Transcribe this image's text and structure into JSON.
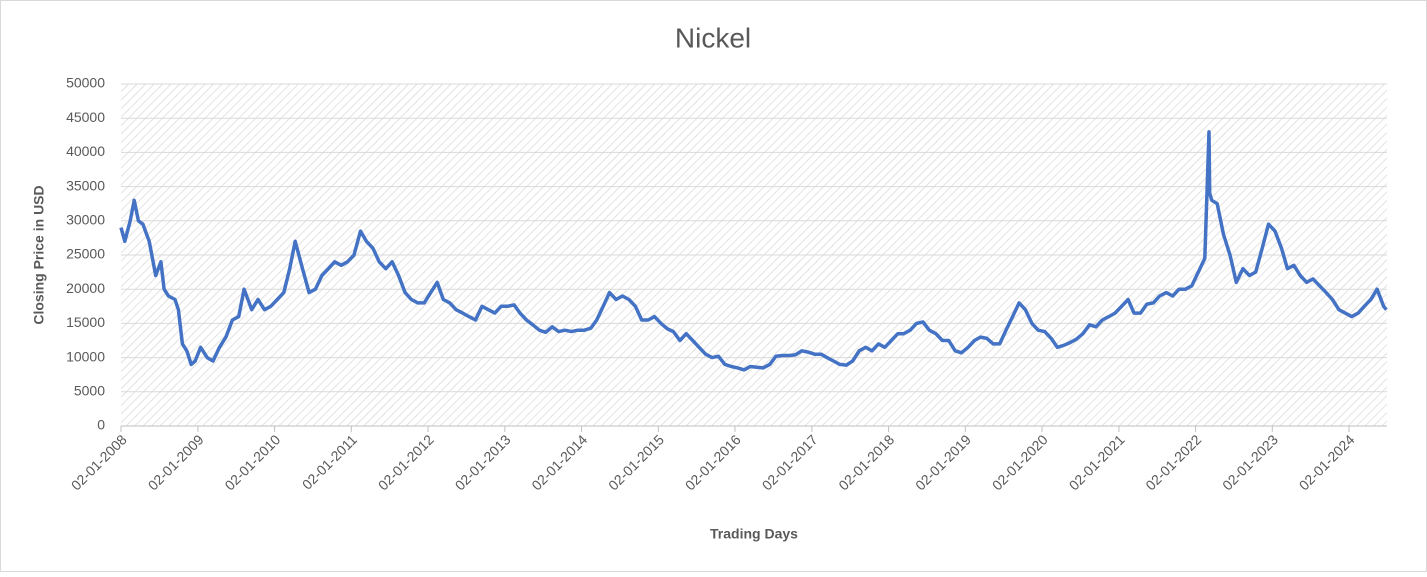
{
  "chart_data": {
    "type": "line",
    "title": "Nickel",
    "x_label": "Trading Days",
    "y_label": "Closing Price in USD",
    "color": "#4472c4",
    "grid": true,
    "ylim": [
      0,
      50000
    ],
    "yticks": [
      0,
      5000,
      10000,
      15000,
      20000,
      25000,
      30000,
      35000,
      40000,
      45000,
      50000
    ],
    "xlim": [
      "02-01-2008",
      "01-07-2024"
    ],
    "xticks": [
      "02-01-2008",
      "02-01-2009",
      "02-01-2010",
      "02-01-2011",
      "02-01-2012",
      "02-01-2013",
      "02-01-2014",
      "02-01-2015",
      "02-01-2016",
      "02-01-2017",
      "02-01-2018",
      "02-01-2019",
      "02-01-2020",
      "02-01-2021",
      "02-01-2022",
      "02-01-2023",
      "02-01-2024"
    ],
    "x": [
      "02-01-2008",
      "20-01-2008",
      "15-02-2008",
      "05-03-2008",
      "25-03-2008",
      "15-04-2008",
      "15-05-2008",
      "15-06-2008",
      "10-07-2008",
      "25-07-2008",
      "15-08-2008",
      "15-09-2008",
      "01-10-2008",
      "20-10-2008",
      "10-11-2008",
      "01-12-2008",
      "20-12-2008",
      "15-01-2009",
      "15-02-2009",
      "15-03-2009",
      "15-04-2009",
      "15-05-2009",
      "15-06-2009",
      "15-07-2009",
      "10-08-2009",
      "15-09-2009",
      "15-10-2009",
      "15-11-2009",
      "15-12-2009",
      "15-01-2010",
      "15-02-2010",
      "15-03-2010",
      "10-04-2010",
      "15-05-2010",
      "15-06-2010",
      "15-07-2010",
      "15-08-2010",
      "15-09-2010",
      "15-10-2010",
      "15-11-2010",
      "15-12-2010",
      "15-01-2011",
      "15-02-2011",
      "15-03-2011",
      "15-04-2011",
      "15-05-2011",
      "15-06-2011",
      "15-07-2011",
      "15-08-2011",
      "15-09-2011",
      "15-10-2011",
      "15-11-2011",
      "15-12-2011",
      "15-01-2012",
      "15-02-2012",
      "15-03-2012",
      "15-04-2012",
      "15-05-2012",
      "15-06-2012",
      "15-07-2012",
      "15-08-2012",
      "15-09-2012",
      "15-10-2012",
      "15-11-2012",
      "15-12-2012",
      "15-01-2013",
      "15-02-2013",
      "15-03-2013",
      "15-04-2013",
      "15-05-2013",
      "15-06-2013",
      "15-07-2013",
      "15-08-2013",
      "15-09-2013",
      "15-10-2013",
      "15-11-2013",
      "15-12-2013",
      "15-01-2014",
      "15-02-2014",
      "15-03-2014",
      "15-04-2014",
      "15-05-2014",
      "15-06-2014",
      "15-07-2014",
      "15-08-2014",
      "15-09-2014",
      "15-10-2014",
      "15-11-2014",
      "15-12-2014",
      "15-01-2015",
      "15-02-2015",
      "15-03-2015",
      "15-04-2015",
      "15-05-2015",
      "15-06-2015",
      "15-07-2015",
      "15-08-2015",
      "15-09-2015",
      "15-10-2015",
      "15-11-2015",
      "15-12-2015",
      "15-01-2016",
      "15-02-2016",
      "15-03-2016",
      "15-04-2016",
      "15-05-2016",
      "15-06-2016",
      "15-07-2016",
      "15-08-2016",
      "15-09-2016",
      "15-10-2016",
      "15-11-2016",
      "15-12-2016",
      "15-01-2017",
      "15-02-2017",
      "15-03-2017",
      "15-04-2017",
      "15-05-2017",
      "15-06-2017",
      "15-07-2017",
      "15-08-2017",
      "15-09-2017",
      "15-10-2017",
      "15-11-2017",
      "15-12-2017",
      "15-01-2018",
      "15-02-2018",
      "15-03-2018",
      "15-04-2018",
      "15-05-2018",
      "15-06-2018",
      "15-07-2018",
      "15-08-2018",
      "15-09-2018",
      "15-10-2018",
      "15-11-2018",
      "15-12-2018",
      "15-01-2019",
      "15-02-2019",
      "15-03-2019",
      "15-04-2019",
      "15-05-2019",
      "15-06-2019",
      "15-07-2019",
      "15-08-2019",
      "15-09-2019",
      "15-10-2019",
      "15-11-2019",
      "15-12-2019",
      "15-01-2020",
      "15-02-2020",
      "15-03-2020",
      "15-04-2020",
      "15-05-2020",
      "15-06-2020",
      "15-07-2020",
      "15-08-2020",
      "15-09-2020",
      "15-10-2020",
      "15-11-2020",
      "15-12-2020",
      "15-01-2021",
      "15-02-2021",
      "15-03-2021",
      "15-04-2021",
      "15-05-2021",
      "15-06-2021",
      "15-07-2021",
      "15-08-2021",
      "15-09-2021",
      "15-10-2021",
      "15-11-2021",
      "15-12-2021",
      "15-01-2022",
      "15-02-2022",
      "07-03-2022",
      "10-03-2022",
      "20-03-2022",
      "15-04-2022",
      "15-05-2022",
      "15-06-2022",
      "15-07-2022",
      "15-08-2022",
      "15-09-2022",
      "15-10-2022",
      "15-11-2022",
      "15-12-2022",
      "15-01-2023",
      "15-02-2023",
      "15-03-2023",
      "15-04-2023",
      "15-05-2023",
      "15-06-2023",
      "15-07-2023",
      "15-08-2023",
      "15-09-2023",
      "15-10-2023",
      "15-11-2023",
      "15-12-2023",
      "15-01-2024",
      "15-02-2024",
      "15-03-2024",
      "15-04-2024",
      "15-05-2024",
      "15-06-2024",
      "28-06-2024"
    ],
    "values": [
      29000,
      27000,
      30000,
      33000,
      30000,
      29500,
      27000,
      22000,
      24000,
      20000,
      19000,
      18500,
      17000,
      12000,
      11000,
      9000,
      9500,
      11500,
      10000,
      9500,
      11500,
      13000,
      15500,
      16000,
      20000,
      17000,
      18500,
      17000,
      17500,
      18500,
      19500,
      23000,
      27000,
      23000,
      19500,
      20000,
      22000,
      23000,
      24000,
      23500,
      24000,
      25000,
      28500,
      27000,
      26000,
      24000,
      23000,
      24000,
      22000,
      19500,
      18500,
      18000,
      18000,
      19500,
      21000,
      18500,
      18000,
      17000,
      16500,
      16000,
      15500,
      17500,
      17000,
      16500,
      17500,
      17500,
      17700,
      16500,
      15500,
      14800,
      14000,
      13700,
      14500,
      13800,
      14000,
      13800,
      14000,
      14000,
      14300,
      15500,
      17500,
      19500,
      18500,
      19000,
      18500,
      17500,
      15500,
      15500,
      16000,
      15000,
      14200,
      13800,
      12500,
      13500,
      12500,
      11500,
      10500,
      10000,
      10200,
      9000,
      8700,
      8500,
      8200,
      8700,
      8600,
      8500,
      9000,
      10200,
      10300,
      10300,
      10400,
      11000,
      10800,
      10500,
      10500,
      10000,
      9500,
      9000,
      8900,
      9500,
      11000,
      11500,
      11000,
      12000,
      11500,
      12500,
      13500,
      13500,
      14000,
      15000,
      15200,
      14000,
      13500,
      12500,
      12500,
      11000,
      10700,
      11500,
      12500,
      13000,
      12800,
      12000,
      12000,
      14000,
      16000,
      18000,
      17000,
      15000,
      14000,
      13800,
      12800,
      11500,
      11800,
      12200,
      12700,
      13500,
      14800,
      14500,
      15500,
      16000,
      16500,
      17500,
      18500,
      16500,
      16500,
      17800,
      18000,
      19000,
      19500,
      19000,
      20000,
      20000,
      20500,
      22500,
      24500,
      43000,
      34000,
      33000,
      32500,
      28000,
      25000,
      21000,
      23000,
      22000,
      22500,
      26000,
      29500,
      28500,
      26000,
      23000,
      23500,
      22000,
      21000,
      21500,
      20500,
      19500,
      18500,
      17000,
      16500,
      16000,
      16500,
      17500,
      18500,
      20000,
      17500,
      17000
    ]
  }
}
